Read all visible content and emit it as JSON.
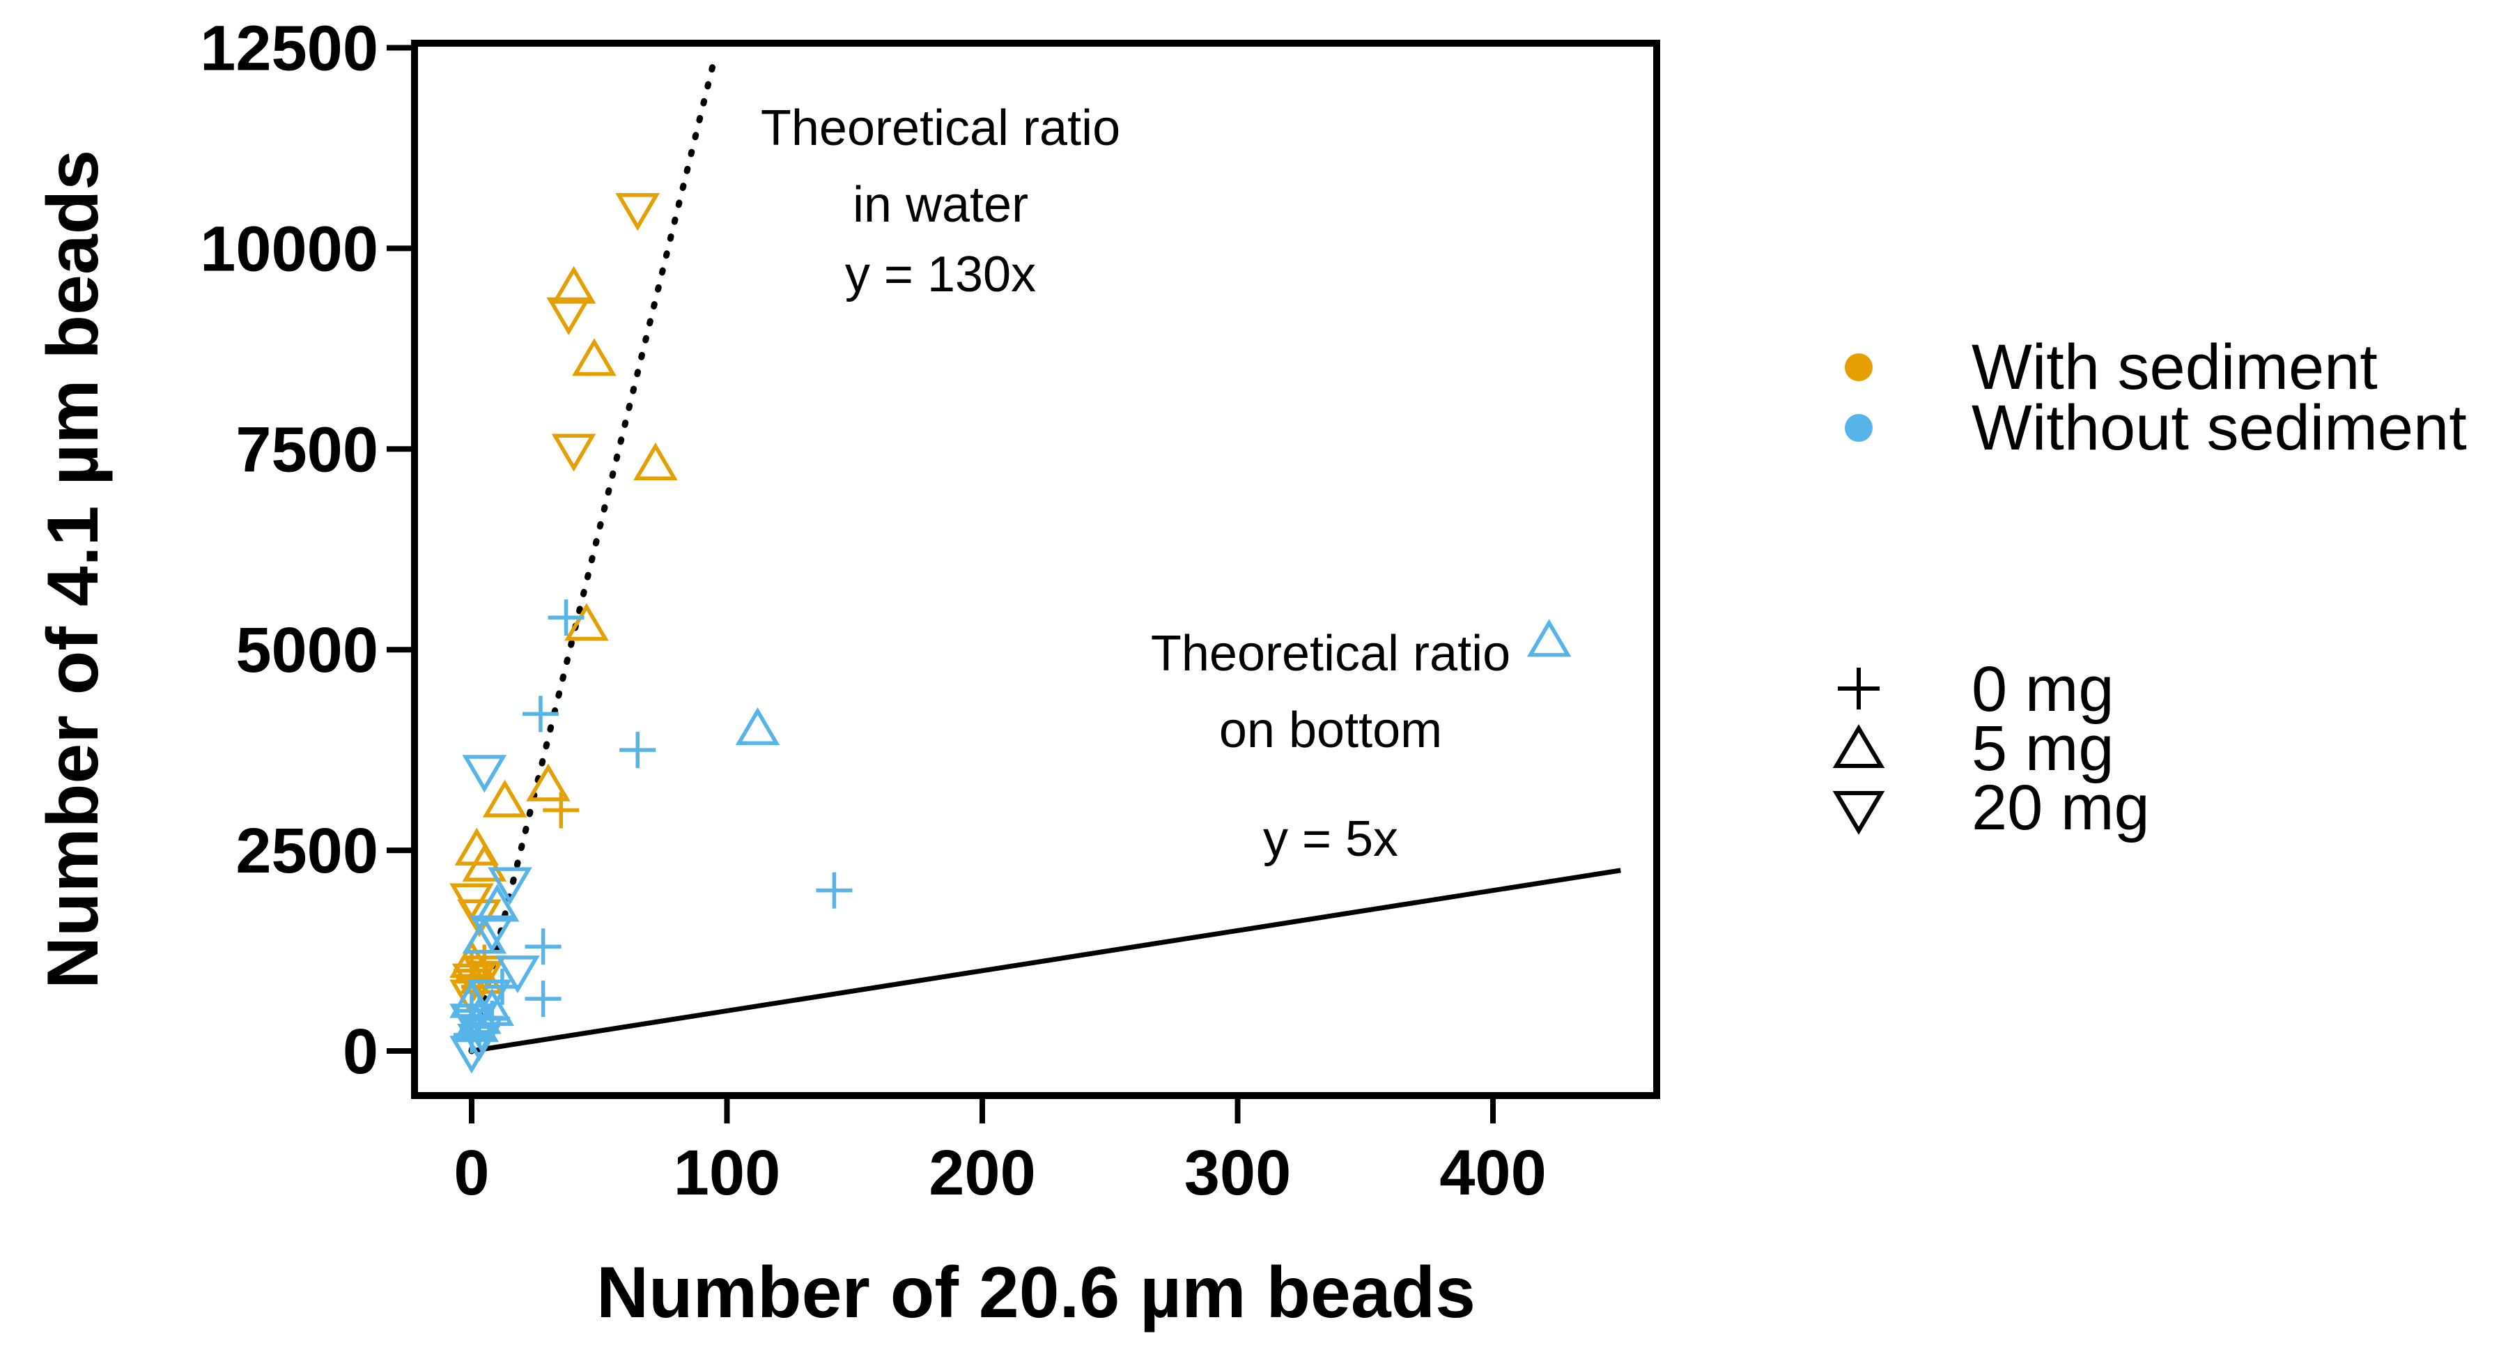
{
  "chart_data": {
    "type": "scatter",
    "xlabel": "Number of 20.6 µm beads",
    "ylabel": "Number of 4.1 µm beads",
    "xlim": [
      -20,
      470
    ],
    "ylim": [
      -600,
      12500
    ],
    "xticks": [
      0,
      100,
      200,
      300,
      400
    ],
    "yticks": [
      0,
      2500,
      5000,
      7500,
      10000,
      12500
    ],
    "xtick_labels": [
      "0",
      "100",
      "200",
      "300",
      "400"
    ],
    "ytick_labels": [
      "0",
      "2500",
      "5000",
      "7500",
      "10000",
      "12500"
    ],
    "grid": false,
    "legend_position": "right",
    "colors": {
      "with_sediment": "#E69F00",
      "without_sediment": "#56B4E9",
      "line": "#000000"
    },
    "legend": {
      "color_entries": [
        {
          "label": "With sediment",
          "color": "#E69F00"
        },
        {
          "label": "Without sediment",
          "color": "#56B4E9"
        }
      ],
      "shape_entries": [
        {
          "label": "0 mg",
          "shape": "plus"
        },
        {
          "label": "5 mg",
          "shape": "triangle-up"
        },
        {
          "label": "20 mg",
          "shape": "triangle-down"
        }
      ]
    },
    "reference_lines": [
      {
        "style": "dotted",
        "slope": 130,
        "x_range": [
          0,
          95
        ],
        "label_line1": "Theoretical ratio",
        "label_line2": "in water",
        "equation": "y = 130x"
      },
      {
        "style": "solid",
        "slope": 5,
        "x_range": [
          0,
          450
        ],
        "label_line1": "Theoretical ratio",
        "label_line2": "on bottom",
        "equation": "y = 5x"
      }
    ],
    "series": [
      {
        "group": "With sediment",
        "shape": "plus",
        "color": "#E69F00",
        "points": [
          [
            0,
            1000
          ],
          [
            1,
            900
          ],
          [
            3,
            800
          ],
          [
            5,
            1100
          ],
          [
            35,
            3000
          ]
        ]
      },
      {
        "group": "With sediment",
        "shape": "triangle-up",
        "color": "#E69F00",
        "points": [
          [
            40,
            9500
          ],
          [
            48,
            8600
          ],
          [
            72,
            7300
          ],
          [
            45,
            5300
          ],
          [
            30,
            3300
          ],
          [
            13,
            3100
          ],
          [
            2,
            2500
          ],
          [
            5,
            2300
          ],
          [
            0,
            1100
          ],
          [
            4,
            900
          ]
        ]
      },
      {
        "group": "With sediment",
        "shape": "triangle-down",
        "color": "#E69F00",
        "points": [
          [
            65,
            10500
          ],
          [
            38,
            9200
          ],
          [
            40,
            7500
          ],
          [
            0,
            1900
          ],
          [
            3,
            1700
          ],
          [
            1,
            900
          ],
          [
            0,
            700
          ],
          [
            5,
            1000
          ]
        ]
      },
      {
        "group": "Without sediment",
        "shape": "plus",
        "color": "#56B4E9",
        "points": [
          [
            37,
            5400
          ],
          [
            27,
            4200
          ],
          [
            65,
            3750
          ],
          [
            142,
            2000
          ],
          [
            28,
            1300
          ],
          [
            28,
            650
          ],
          [
            0,
            500
          ],
          [
            3,
            300
          ],
          [
            8,
            400
          ],
          [
            12,
            800
          ],
          [
            0,
            200
          ]
        ]
      },
      {
        "group": "Without sediment",
        "shape": "triangle-up",
        "color": "#56B4E9",
        "points": [
          [
            422,
            5100
          ],
          [
            112,
            4000
          ],
          [
            10,
            1800
          ],
          [
            5,
            1400
          ],
          [
            0,
            600
          ],
          [
            3,
            400
          ],
          [
            8,
            500
          ],
          [
            2,
            300
          ]
        ]
      },
      {
        "group": "Without sediment",
        "shape": "triangle-down",
        "color": "#56B4E9",
        "points": [
          [
            5,
            3500
          ],
          [
            15,
            2100
          ],
          [
            8,
            1500
          ],
          [
            18,
            1000
          ],
          [
            0,
            400
          ],
          [
            4,
            250
          ],
          [
            0,
            0
          ],
          [
            7,
            700
          ],
          [
            3,
            150
          ]
        ]
      }
    ]
  }
}
